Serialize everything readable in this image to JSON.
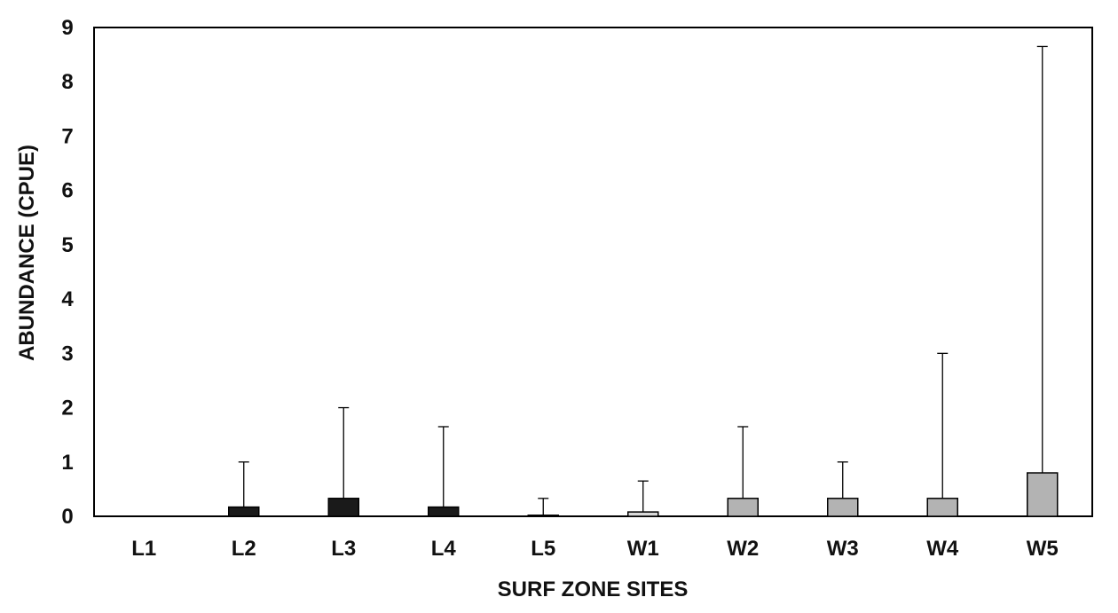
{
  "chart_data": {
    "type": "bar",
    "title": "",
    "xlabel": "SURF ZONE SITES",
    "ylabel": "ABUNDANCE (CPUE)",
    "ylim": [
      0,
      9
    ],
    "yticks": [
      "0",
      "1",
      "2",
      "3",
      "4",
      "5",
      "6",
      "7",
      "8",
      "9"
    ],
    "grid": false,
    "legend": "none",
    "categories": [
      "L1",
      "L2",
      "L3",
      "L4",
      "L5",
      "W1",
      "W2",
      "W3",
      "W4",
      "W5"
    ],
    "values": [
      0,
      0.17,
      0.33,
      0.17,
      0.02,
      0.08,
      0.33,
      0.33,
      0.33,
      0.8
    ],
    "error_upper": [
      0,
      1.0,
      2.0,
      1.65,
      0.33,
      0.65,
      1.65,
      1.0,
      3.0,
      8.65
    ],
    "bar_colors": [
      "#1a1a1a",
      "#1a1a1a",
      "#1a1a1a",
      "#1a1a1a",
      "#ffffff",
      "#d9d9d9",
      "#b3b3b3",
      "#b3b3b3",
      "#b3b3b3",
      "#b3b3b3"
    ]
  }
}
